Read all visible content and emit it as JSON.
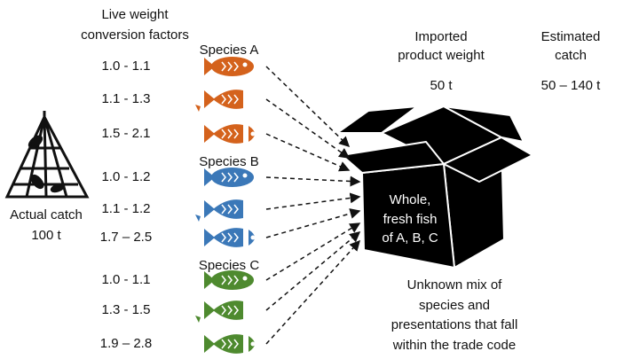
{
  "conversion_header": [
    "Live weight",
    "conversion factors"
  ],
  "species": [
    {
      "label": "Species A",
      "color": "#d4621c",
      "factors": [
        "1.0 - 1.1",
        "1.1 - 1.3",
        "1.5 - 2.1"
      ]
    },
    {
      "label": "Species B",
      "color": "#3b78b8",
      "factors": [
        "1.0 - 1.2",
        "1.1 - 1.2",
        "1.7 – 2.5"
      ]
    },
    {
      "label": "Species C",
      "color": "#4e8a2f",
      "factors": [
        "1.0 - 1.1",
        "1.3 - 1.5",
        "1.9 – 2.8"
      ]
    }
  ],
  "actual_catch": {
    "label": "Actual catch",
    "value": "100 t"
  },
  "imported": {
    "label": [
      "Imported",
      "product weight"
    ],
    "value": "50 t"
  },
  "estimated": {
    "label": [
      "Estimated",
      "catch"
    ],
    "value": "50 – 140 t"
  },
  "box_text": [
    "Whole,",
    "fresh fish",
    "of A, B, C"
  ],
  "note": [
    "Unknown mix of",
    "species and",
    "presentations that fall",
    "within the trade code"
  ]
}
